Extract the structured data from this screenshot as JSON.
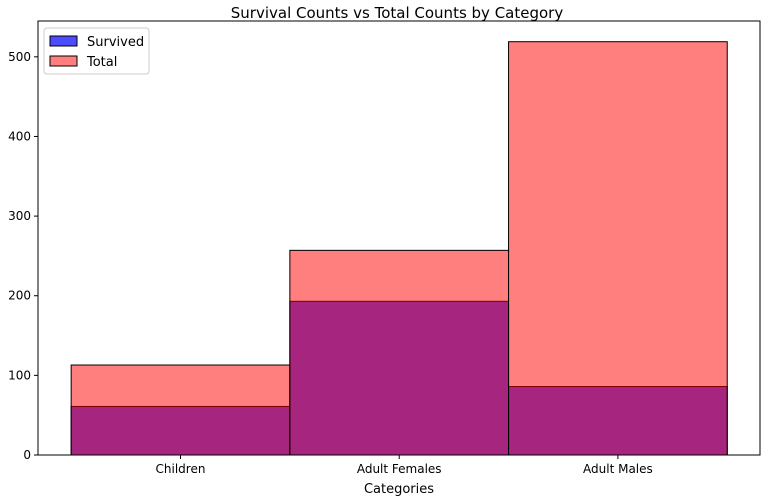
{
  "chart_data": {
    "type": "bar",
    "title": "Survival Counts vs Total Counts by Category",
    "xlabel": "Categories",
    "ylabel": "",
    "categories": [
      "Children",
      "Adult Females",
      "Adult Males"
    ],
    "series": [
      {
        "name": "Survived",
        "values": [
          61,
          193,
          86
        ],
        "color": "#0000ff",
        "opacity": 0.7
      },
      {
        "name": "Total",
        "values": [
          113,
          257,
          519
        ],
        "color": "#ff0000",
        "opacity": 0.5
      }
    ],
    "ylim": [
      0,
      545
    ],
    "yticks": [
      0,
      100,
      200,
      300,
      400,
      500
    ],
    "grid": false,
    "legend_position": "upper left",
    "bar_edge_color": "#000000"
  }
}
